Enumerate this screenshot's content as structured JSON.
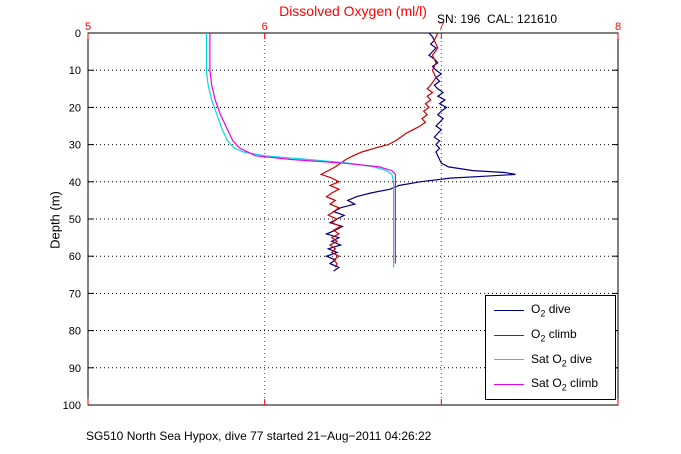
{
  "header": {
    "title": "Dissolved Oxygen (ml/l)",
    "title_color": "#FF0000",
    "sn_cal": "SN: 196  CAL: 121610"
  },
  "caption": "SG510 North Sea Hypox, dive 77 started 21−Aug−2011 04:26:22",
  "legend": {
    "items": [
      {
        "pre": "O",
        "sub": "2",
        "post": " dive",
        "color": "#000080"
      },
      {
        "pre": "O",
        "sub": "2",
        "post": " climb",
        "color": "#CC0000"
      },
      {
        "pre": "Sat O",
        "sub": "2",
        "post": " dive",
        "color": "#00DDDD"
      },
      {
        "pre": "Sat O",
        "sub": "2",
        "post": " climb",
        "color": "#EE00EE"
      }
    ]
  },
  "chart_data": {
    "type": "line",
    "title": "Dissolved Oxygen (ml/l)",
    "xlabel": "Dissolved Oxygen (ml/l)",
    "ylabel": "Depth (m)",
    "xlim": [
      5,
      8
    ],
    "ylim": [
      0,
      100
    ],
    "y_direction": "reverse",
    "xticks": [
      5,
      6,
      7,
      8
    ],
    "yticks": [
      0,
      10,
      20,
      30,
      40,
      50,
      60,
      70,
      80,
      90,
      100
    ],
    "grid": {
      "x_color": "#FF0000",
      "y_color": "#000000",
      "style": "dotted"
    },
    "x_axis_color": "#FF0000",
    "y_axis_color": "#000000",
    "legend_position": "bottom-right",
    "series": [
      {
        "id": "o2-dive",
        "name": "O2 dive",
        "color": "#000080",
        "points": [
          [
            6.93,
            0
          ],
          [
            6.95,
            1
          ],
          [
            6.96,
            2
          ],
          [
            6.94,
            3
          ],
          [
            6.97,
            4
          ],
          [
            6.95,
            5
          ],
          [
            6.93,
            6
          ],
          [
            6.96,
            7
          ],
          [
            6.98,
            8
          ],
          [
            6.95,
            9
          ],
          [
            6.97,
            10
          ],
          [
            7.0,
            11
          ],
          [
            6.97,
            12
          ],
          [
            6.99,
            13
          ],
          [
            6.96,
            14
          ],
          [
            6.98,
            15
          ],
          [
            7.01,
            16
          ],
          [
            6.98,
            17
          ],
          [
            7.02,
            18
          ],
          [
            6.99,
            19
          ],
          [
            7.03,
            20
          ],
          [
            7.0,
            21
          ],
          [
            6.98,
            22
          ],
          [
            7.01,
            23
          ],
          [
            6.99,
            24
          ],
          [
            6.97,
            25
          ],
          [
            7.0,
            26
          ],
          [
            6.98,
            27
          ],
          [
            6.96,
            28
          ],
          [
            6.99,
            29
          ],
          [
            6.97,
            30
          ],
          [
            6.99,
            31
          ],
          [
            6.97,
            32
          ],
          [
            6.98,
            33
          ],
          [
            6.99,
            34
          ],
          [
            7.0,
            35
          ],
          [
            7.04,
            36
          ],
          [
            7.18,
            37
          ],
          [
            7.36,
            37.5
          ],
          [
            7.42,
            38
          ],
          [
            7.25,
            38.5
          ],
          [
            7.05,
            39
          ],
          [
            6.88,
            40
          ],
          [
            6.76,
            41
          ],
          [
            6.71,
            42
          ],
          [
            6.6,
            43
          ],
          [
            6.52,
            44
          ],
          [
            6.47,
            45
          ],
          [
            6.51,
            46
          ],
          [
            6.43,
            47
          ],
          [
            6.39,
            48
          ],
          [
            6.45,
            49
          ],
          [
            6.41,
            50
          ],
          [
            6.37,
            51
          ],
          [
            6.44,
            52
          ],
          [
            6.4,
            53
          ],
          [
            6.35,
            54
          ],
          [
            6.42,
            55
          ],
          [
            6.38,
            56
          ],
          [
            6.43,
            57
          ],
          [
            6.36,
            58
          ],
          [
            6.41,
            59
          ],
          [
            6.35,
            60
          ],
          [
            6.4,
            61
          ],
          [
            6.37,
            62
          ],
          [
            6.42,
            63
          ],
          [
            6.39,
            64
          ]
        ]
      },
      {
        "id": "o2-climb",
        "name": "O2 climb",
        "color": "#CC0000",
        "points": [
          [
            6.98,
            0
          ],
          [
            6.96,
            2
          ],
          [
            6.98,
            4
          ],
          [
            6.95,
            6
          ],
          [
            6.97,
            8
          ],
          [
            6.95,
            10
          ],
          [
            6.97,
            12
          ],
          [
            6.94,
            14
          ],
          [
            6.92,
            15
          ],
          [
            6.95,
            16
          ],
          [
            6.92,
            17
          ],
          [
            6.94,
            18
          ],
          [
            6.91,
            19
          ],
          [
            6.93,
            20
          ],
          [
            6.9,
            21
          ],
          [
            6.92,
            22
          ],
          [
            6.89,
            23
          ],
          [
            6.91,
            24
          ],
          [
            6.88,
            25
          ],
          [
            6.84,
            26
          ],
          [
            6.8,
            27
          ],
          [
            6.77,
            28
          ],
          [
            6.74,
            29
          ],
          [
            6.7,
            30
          ],
          [
            6.62,
            31
          ],
          [
            6.55,
            32
          ],
          [
            6.5,
            33
          ],
          [
            6.46,
            34
          ],
          [
            6.43,
            35
          ],
          [
            6.4,
            36
          ],
          [
            6.36,
            37
          ],
          [
            6.32,
            38
          ],
          [
            6.38,
            39
          ],
          [
            6.42,
            40
          ],
          [
            6.37,
            41
          ],
          [
            6.42,
            42
          ],
          [
            6.38,
            43
          ],
          [
            6.35,
            44
          ],
          [
            6.4,
            45
          ],
          [
            6.37,
            46
          ],
          [
            6.42,
            47
          ],
          [
            6.39,
            48
          ],
          [
            6.36,
            49
          ],
          [
            6.41,
            50
          ],
          [
            6.38,
            51
          ],
          [
            6.43,
            52
          ],
          [
            6.39,
            53
          ],
          [
            6.42,
            54
          ],
          [
            6.38,
            55
          ],
          [
            6.41,
            56
          ],
          [
            6.37,
            57
          ],
          [
            6.4,
            58
          ],
          [
            6.38,
            59
          ],
          [
            6.42,
            60
          ],
          [
            6.39,
            61
          ],
          [
            6.41,
            62
          ],
          [
            6.4,
            63
          ]
        ]
      },
      {
        "id": "sat-o2-dive",
        "name": "Sat O2 dive",
        "color": "#00DDDD",
        "points": [
          [
            5.67,
            0
          ],
          [
            5.67,
            5
          ],
          [
            5.67,
            10
          ],
          [
            5.68,
            14
          ],
          [
            5.7,
            18
          ],
          [
            5.73,
            22
          ],
          [
            5.76,
            26
          ],
          [
            5.79,
            29
          ],
          [
            5.83,
            31
          ],
          [
            5.88,
            32
          ],
          [
            6.0,
            33
          ],
          [
            6.25,
            34
          ],
          [
            6.48,
            35
          ],
          [
            6.62,
            36
          ],
          [
            6.69,
            37
          ],
          [
            6.72,
            38
          ],
          [
            6.73,
            40
          ],
          [
            6.73,
            45
          ],
          [
            6.73,
            50
          ],
          [
            6.73,
            55
          ],
          [
            6.73,
            60
          ],
          [
            6.73,
            63
          ]
        ]
      },
      {
        "id": "sat-o2-climb",
        "name": "Sat O2 climb",
        "color": "#EE00EE",
        "points": [
          [
            5.69,
            0
          ],
          [
            5.69,
            5
          ],
          [
            5.69,
            10
          ],
          [
            5.7,
            14
          ],
          [
            5.72,
            18
          ],
          [
            5.75,
            22
          ],
          [
            5.79,
            26
          ],
          [
            5.82,
            29
          ],
          [
            5.86,
            31
          ],
          [
            5.95,
            33
          ],
          [
            6.15,
            34
          ],
          [
            6.45,
            35
          ],
          [
            6.65,
            36
          ],
          [
            6.72,
            37
          ],
          [
            6.74,
            38
          ],
          [
            6.74,
            40
          ],
          [
            6.74,
            45
          ],
          [
            6.74,
            50
          ],
          [
            6.74,
            55
          ],
          [
            6.74,
            60
          ],
          [
            6.74,
            62
          ]
        ]
      }
    ]
  }
}
